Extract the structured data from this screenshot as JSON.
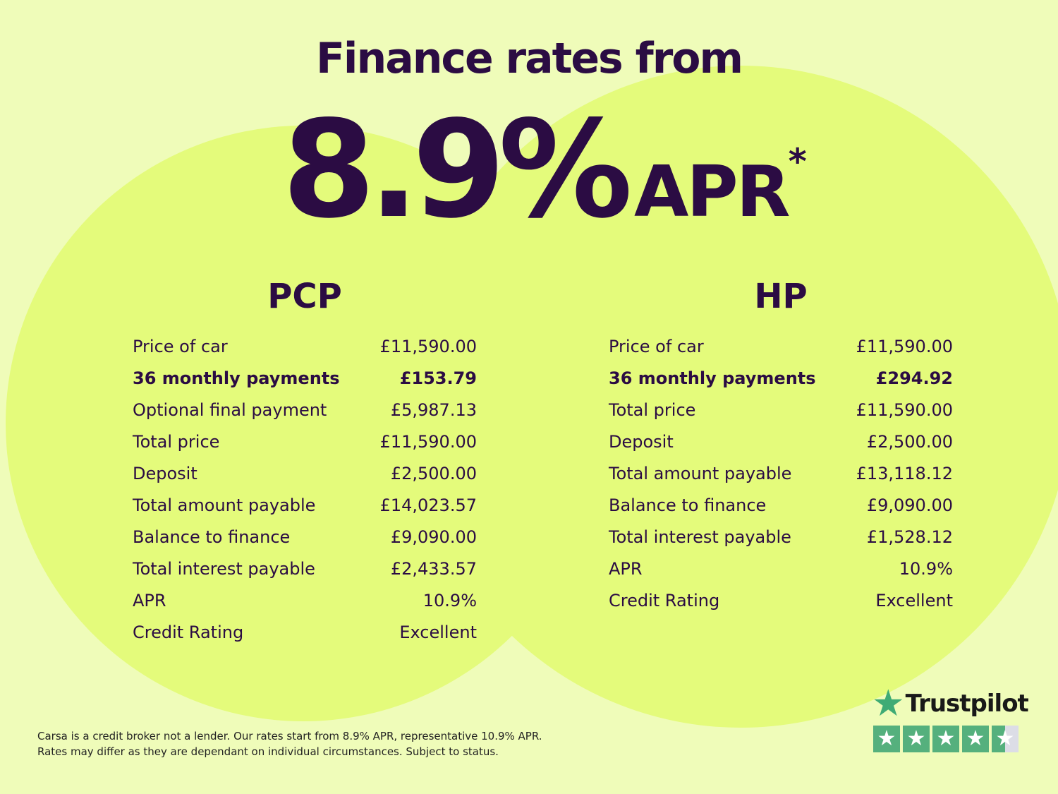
{
  "title": "Finance rates from",
  "headline": {
    "rate": "8.9%",
    "suffix": "APR",
    "asterisk": "*"
  },
  "pcp": {
    "heading": "PCP",
    "rows": [
      {
        "label": "Price of car",
        "value": "£11,590.00"
      },
      {
        "label": "36 monthly payments",
        "value": "£153.79",
        "bold": true
      },
      {
        "label": "Optional final payment",
        "value": "£5,987.13"
      },
      {
        "label": "Total price",
        "value": "£11,590.00"
      },
      {
        "label": "Deposit",
        "value": "£2,500.00"
      },
      {
        "label": "Total amount payable",
        "value": "£14,023.57"
      },
      {
        "label": "Balance to finance",
        "value": "£9,090.00"
      },
      {
        "label": "Total interest payable",
        "value": "£2,433.57"
      },
      {
        "label": "APR",
        "value": "10.9%"
      },
      {
        "label": "Credit Rating",
        "value": "Excellent"
      }
    ]
  },
  "hp": {
    "heading": "HP",
    "rows": [
      {
        "label": "Price of car",
        "value": "£11,590.00"
      },
      {
        "label": "36 monthly payments",
        "value": "£294.92",
        "bold": true
      },
      {
        "label": "Total price",
        "value": "£11,590.00"
      },
      {
        "label": "Deposit",
        "value": "£2,500.00"
      },
      {
        "label": "Total amount payable",
        "value": "£13,118.12"
      },
      {
        "label": "Balance to finance",
        "value": "£9,090.00"
      },
      {
        "label": "Total interest payable",
        "value": "£1,528.12"
      },
      {
        "label": "APR",
        "value": "10.9%"
      },
      {
        "label": "Credit Rating",
        "value": "Excellent"
      }
    ]
  },
  "disclaimer": [
    "Carsa is a credit broker not a lender. Our rates start from 8.9% APR, representative 10.9% APR.",
    "Rates may differ as they are dependant on individual circumstances. Subject to status."
  ],
  "trustpilot": {
    "label": "Trustpilot",
    "rating_stars": 4.5,
    "max_stars": 5,
    "color": "#55b07d"
  },
  "colors": {
    "background": "#effcb9",
    "circle": "#e4fb7b",
    "text": "#2b0c43"
  }
}
